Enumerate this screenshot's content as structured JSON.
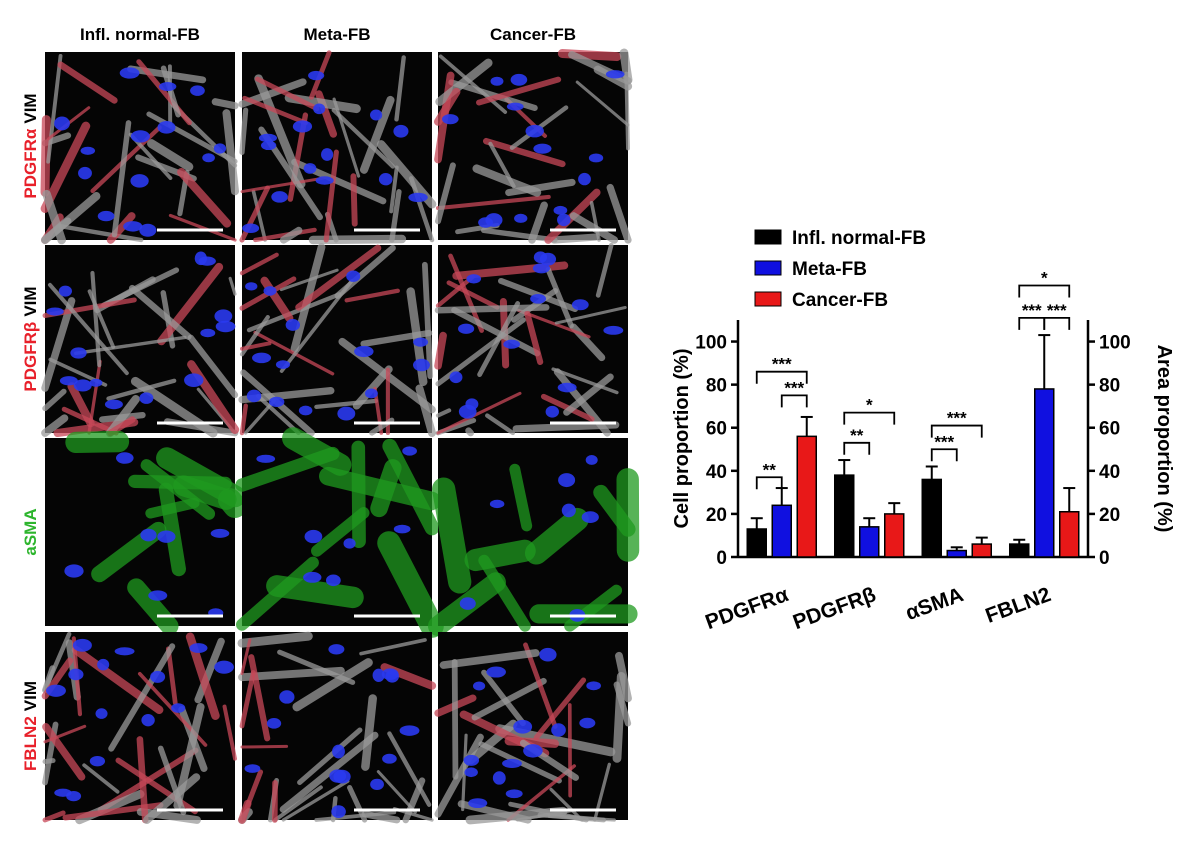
{
  "figure": {
    "columns": [
      "Infl. normal-FB",
      "Meta-FB",
      "Cancer-FB"
    ],
    "rows": [
      {
        "marker": "PDGFRα",
        "marker_color": "#e8202a",
        "counterstain": "VIM"
      },
      {
        "marker": "PDGFRβ",
        "marker_color": "#e8202a",
        "counterstain": "VIM"
      },
      {
        "marker": "aSMA",
        "marker_color": "#2db52d"
      },
      {
        "marker": "FBLN2",
        "marker_color": "#e8202a",
        "counterstain": "VIM"
      }
    ]
  },
  "chart_data": {
    "type": "bar",
    "categories": [
      "PDGFRα",
      "PDGFRβ",
      "αSMA",
      "FBLN2"
    ],
    "series": [
      {
        "name": "Infl. normal-FB",
        "color": "#000000",
        "values": [
          13,
          38,
          36,
          6
        ],
        "errors": [
          5,
          7,
          6,
          2
        ]
      },
      {
        "name": "Meta-FB",
        "color": "#1010e0",
        "values": [
          24,
          14,
          3,
          78
        ],
        "errors": [
          8,
          4,
          1.5,
          25
        ]
      },
      {
        "name": "Cancer-FB",
        "color": "#e81818",
        "values": [
          56,
          20,
          6,
          21
        ],
        "errors": [
          9,
          5,
          3,
          11
        ]
      }
    ],
    "ylabel": "Cell proportion (%)",
    "y2label": "Area proportion (%)",
    "ylim": [
      0,
      110
    ],
    "yticks": [
      0,
      20,
      40,
      60,
      80,
      100
    ],
    "y2lim": [
      0,
      110
    ],
    "y2ticks": [
      0,
      20,
      40,
      60,
      80,
      100
    ],
    "annotations": [
      {
        "category": "PDGFRα",
        "between": [
          "Infl. normal-FB",
          "Meta-FB"
        ],
        "label": "**",
        "y": 37
      },
      {
        "category": "PDGFRα",
        "between": [
          "Meta-FB",
          "Cancer-FB"
        ],
        "label": "***",
        "y": 75
      },
      {
        "category": "PDGFRα",
        "between": [
          "Infl. normal-FB",
          "Cancer-FB"
        ],
        "label": "***",
        "y": 86
      },
      {
        "category": "PDGFRβ",
        "between": [
          "Infl. normal-FB",
          "Meta-FB"
        ],
        "label": "**",
        "y": 53
      },
      {
        "category": "PDGFRβ",
        "between": [
          "Infl. normal-FB",
          "Cancer-FB"
        ],
        "label": "*",
        "y": 67
      },
      {
        "category": "αSMA",
        "between": [
          "Infl. normal-FB",
          "Meta-FB"
        ],
        "label": "***",
        "y": 50
      },
      {
        "category": "αSMA",
        "between": [
          "Infl. normal-FB",
          "Cancer-FB"
        ],
        "label": "***",
        "y": 61
      },
      {
        "category": "FBLN2",
        "between": [
          "Infl. normal-FB",
          "Meta-FB"
        ],
        "label": "***",
        "y": 111
      },
      {
        "category": "FBLN2",
        "between": [
          "Meta-FB",
          "Cancer-FB"
        ],
        "label": "***",
        "y": 111
      },
      {
        "category": "FBLN2",
        "between": [
          "Infl. normal-FB",
          "Cancer-FB"
        ],
        "label": "*",
        "y": 126
      }
    ]
  }
}
